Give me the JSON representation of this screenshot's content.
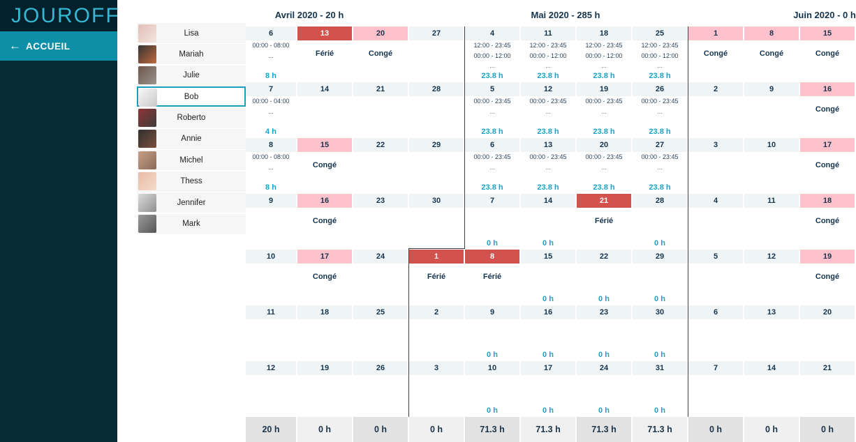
{
  "sidebar": {
    "logo": "JOUROFF",
    "back_label": "ACCUEIL",
    "back_arrow": "←"
  },
  "people": [
    {
      "name": "Lisa",
      "selected": false,
      "avatar_c1": "#e3bdb6",
      "avatar_c2": "#f3e6e0"
    },
    {
      "name": "Mariah",
      "selected": false,
      "avatar_c1": "#343434",
      "avatar_c2": "#c06a3e"
    },
    {
      "name": "Julie",
      "selected": false,
      "avatar_c1": "#6d574a",
      "avatar_c2": "#9a938e"
    },
    {
      "name": "Bob",
      "selected": true,
      "avatar_c1": "#f7f7f7",
      "avatar_c2": "#c9c9c9"
    },
    {
      "name": "Roberto",
      "selected": false,
      "avatar_c1": "#8f3434",
      "avatar_c2": "#3d3d3d"
    },
    {
      "name": "Annie",
      "selected": false,
      "avatar_c1": "#303030",
      "avatar_c2": "#7a4f3c"
    },
    {
      "name": "Michel",
      "selected": false,
      "avatar_c1": "#c79f86",
      "avatar_c2": "#8a6a58"
    },
    {
      "name": "Thess",
      "selected": false,
      "avatar_c1": "#eab9a7",
      "avatar_c2": "#f5dccb"
    },
    {
      "name": "Jennifer",
      "selected": false,
      "avatar_c1": "#dadada",
      "avatar_c2": "#8f8f8f"
    },
    {
      "name": "Mark",
      "selected": false,
      "avatar_c1": "#9b9b9b",
      "avatar_c2": "#565656"
    }
  ],
  "calendar": {
    "months": [
      {
        "label": "Avril 2020 - 20 h"
      },
      {
        "label": "Mai 2020 - 285 h"
      },
      {
        "label": "Juin 2020 - 0 h"
      }
    ],
    "columns": [
      {
        "total": "20 h",
        "shade": "dark",
        "days": [
          {
            "date": "6",
            "times": [
              "00:00 - 08:00",
              "..."
            ],
            "hours": "8 h"
          },
          {
            "date": "7",
            "times": [
              "00:00 - 04:00",
              "..."
            ],
            "hours": "4 h"
          },
          {
            "date": "8",
            "times": [
              "00:00 - 08:00",
              "..."
            ],
            "hours": "8 h"
          },
          {
            "date": "9"
          },
          {
            "date": "10"
          },
          {
            "date": "11"
          },
          {
            "date": "12"
          }
        ]
      },
      {
        "total": "0 h",
        "shade": "light",
        "days": [
          {
            "date": "13",
            "status": "ferie",
            "label": "Férié"
          },
          {
            "date": "14"
          },
          {
            "date": "15",
            "status": "conge",
            "label": "Congé"
          },
          {
            "date": "16",
            "status": "conge",
            "label": "Congé"
          },
          {
            "date": "17",
            "status": "conge",
            "label": "Congé"
          },
          {
            "date": "18"
          },
          {
            "date": "19"
          }
        ]
      },
      {
        "total": "0 h",
        "shade": "dark",
        "days": [
          {
            "date": "20",
            "status": "conge",
            "label": "Congé"
          },
          {
            "date": "21"
          },
          {
            "date": "22"
          },
          {
            "date": "23"
          },
          {
            "date": "24"
          },
          {
            "date": "25"
          },
          {
            "date": "26"
          }
        ]
      },
      {
        "total": "0 h",
        "shade": "light",
        "days": [
          {
            "date": "27"
          },
          {
            "date": "28"
          },
          {
            "date": "29"
          },
          {
            "date": "30"
          },
          {
            "date": "1",
            "status": "ferie",
            "label": "Férié"
          },
          {
            "date": "2"
          },
          {
            "date": "3"
          }
        ]
      },
      {
        "total": "71.3 h",
        "shade": "dark",
        "days": [
          {
            "date": "4",
            "times": [
              "12:00 - 23:45",
              "00:00 - 12:00",
              "..."
            ],
            "hours": "23.8 h"
          },
          {
            "date": "5",
            "times": [
              "00:00 - 23:45",
              "..."
            ],
            "hours": "23.8 h"
          },
          {
            "date": "6",
            "times": [
              "00:00 - 23:45",
              "..."
            ],
            "hours": "23.8 h"
          },
          {
            "date": "7",
            "hours": "0 h"
          },
          {
            "date": "8",
            "status": "ferie",
            "label": "Férié"
          },
          {
            "date": "9",
            "hours": "0 h"
          },
          {
            "date": "10",
            "hours": "0 h"
          }
        ]
      },
      {
        "total": "71.3 h",
        "shade": "light",
        "days": [
          {
            "date": "11",
            "times": [
              "12:00 - 23:45",
              "00:00 - 12:00",
              "..."
            ],
            "hours": "23.8 h"
          },
          {
            "date": "12",
            "times": [
              "00:00 - 23:45",
              "..."
            ],
            "hours": "23.8 h"
          },
          {
            "date": "13",
            "times": [
              "00:00 - 23:45",
              "..."
            ],
            "hours": "23.8 h"
          },
          {
            "date": "14",
            "hours": "0 h"
          },
          {
            "date": "15",
            "hours": "0 h"
          },
          {
            "date": "16",
            "hours": "0 h"
          },
          {
            "date": "17",
            "hours": "0 h"
          }
        ]
      },
      {
        "total": "71.3 h",
        "shade": "dark",
        "days": [
          {
            "date": "18",
            "times": [
              "12:00 - 23:45",
              "00:00 - 12:00",
              "..."
            ],
            "hours": "23.8 h"
          },
          {
            "date": "19",
            "times": [
              "00:00 - 23:45",
              "..."
            ],
            "hours": "23.8 h"
          },
          {
            "date": "20",
            "times": [
              "00:00 - 23:45",
              "..."
            ],
            "hours": "23.8 h"
          },
          {
            "date": "21",
            "status": "ferie",
            "label": "Férié"
          },
          {
            "date": "22",
            "hours": "0 h"
          },
          {
            "date": "23",
            "hours": "0 h"
          },
          {
            "date": "24",
            "hours": "0 h"
          }
        ]
      },
      {
        "total": "71.3 h",
        "shade": "light",
        "days": [
          {
            "date": "25",
            "times": [
              "12:00 - 23:45",
              "00:00 - 12:00",
              "..."
            ],
            "hours": "23.8 h"
          },
          {
            "date": "26",
            "times": [
              "00:00 - 23:45",
              "..."
            ],
            "hours": "23.8 h"
          },
          {
            "date": "27",
            "times": [
              "00:00 - 23:45",
              "..."
            ],
            "hours": "23.8 h"
          },
          {
            "date": "28",
            "hours": "0 h"
          },
          {
            "date": "29",
            "hours": "0 h"
          },
          {
            "date": "30",
            "hours": "0 h"
          },
          {
            "date": "31",
            "hours": "0 h"
          }
        ]
      },
      {
        "total": "0 h",
        "shade": "dark",
        "days": [
          {
            "date": "1",
            "status": "conge",
            "label": "Congé"
          },
          {
            "date": "2"
          },
          {
            "date": "3"
          },
          {
            "date": "4"
          },
          {
            "date": "5"
          },
          {
            "date": "6"
          },
          {
            "date": "7"
          }
        ]
      },
      {
        "total": "0 h",
        "shade": "light",
        "days": [
          {
            "date": "8",
            "status": "conge",
            "label": "Congé"
          },
          {
            "date": "9"
          },
          {
            "date": "10"
          },
          {
            "date": "11"
          },
          {
            "date": "12"
          },
          {
            "date": "13"
          },
          {
            "date": "14"
          }
        ]
      },
      {
        "total": "0 h",
        "shade": "dark",
        "days": [
          {
            "date": "15",
            "status": "conge",
            "label": "Congé"
          },
          {
            "date": "16",
            "status": "conge",
            "label": "Congé"
          },
          {
            "date": "17",
            "status": "conge",
            "label": "Congé"
          },
          {
            "date": "18",
            "status": "conge",
            "label": "Congé"
          },
          {
            "date": "19",
            "status": "conge",
            "label": "Congé"
          },
          {
            "date": "20"
          },
          {
            "date": "21"
          }
        ]
      }
    ]
  },
  "colors": {
    "ferie_red": "#d4524e",
    "conge_pink": "#ffc2cc",
    "hours_teal": "#1ba3c5",
    "accent_teal": "#0d8fa8",
    "sidebar_dark": "#072b34"
  }
}
